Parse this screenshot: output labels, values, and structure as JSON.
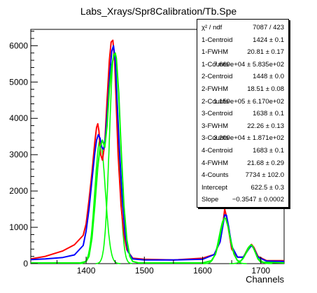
{
  "title": "Labs_Xrays/Spr8Calibration/Tb.Spe",
  "chart_data": {
    "type": "line",
    "title": "Labs_Xrays/Spr8Calibration/Tb.Spe",
    "xlabel": "Channels",
    "ylabel": "",
    "xlim": [
      1305,
      1740
    ],
    "ylim": [
      0,
      6450
    ],
    "x_ticks": [
      1400,
      1500,
      1600,
      1700
    ],
    "y_ticks": [
      0,
      1000,
      2000,
      3000,
      4000,
      5000,
      6000
    ],
    "grid": false,
    "series": [
      {
        "color": "#ff0000",
        "x": [
          1305,
          1330,
          1360,
          1380,
          1395,
          1400,
          1405,
          1410,
          1415,
          1418,
          1420,
          1422,
          1425,
          1428,
          1432,
          1436,
          1440,
          1443,
          1446,
          1449,
          1452,
          1455,
          1460,
          1465,
          1470,
          1480,
          1500,
          1550,
          1600,
          1620,
          1630,
          1635,
          1638,
          1641,
          1645,
          1650,
          1660,
          1670,
          1680,
          1684,
          1688,
          1695,
          1710,
          1740
        ],
        "y": [
          130,
          200,
          350,
          520,
          780,
          1100,
          1750,
          2500,
          3350,
          3750,
          3850,
          3650,
          3000,
          2850,
          3300,
          4500,
          5600,
          6100,
          6150,
          5600,
          4300,
          3000,
          1600,
          800,
          380,
          150,
          120,
          100,
          150,
          250,
          600,
          1100,
          1500,
          1300,
          900,
          400,
          180,
          180,
          450,
          530,
          450,
          200,
          80,
          80
        ]
      },
      {
        "color": "#0000ff",
        "x": [
          1305,
          1330,
          1360,
          1380,
          1395,
          1400,
          1405,
          1410,
          1415,
          1418,
          1421,
          1424,
          1427,
          1430,
          1433,
          1437,
          1441,
          1444,
          1447,
          1450,
          1453,
          1457,
          1462,
          1467,
          1472,
          1480,
          1500,
          1550,
          1600,
          1620,
          1630,
          1635,
          1638,
          1641,
          1645,
          1650,
          1660,
          1670,
          1680,
          1684,
          1688,
          1695,
          1710,
          1740
        ],
        "y": [
          110,
          130,
          170,
          240,
          500,
          900,
          1500,
          2300,
          3050,
          3400,
          3550,
          3450,
          3200,
          3150,
          3450,
          4300,
          5300,
          5850,
          6000,
          5600,
          4500,
          3200,
          1800,
          800,
          330,
          130,
          100,
          100,
          120,
          250,
          600,
          1050,
          1340,
          1330,
          1000,
          480,
          180,
          180,
          420,
          500,
          420,
          180,
          70,
          60
        ]
      },
      {
        "color": "#00ff00",
        "x": [
          1305,
          1390,
          1400,
          1405,
          1410,
          1415,
          1420,
          1424,
          1428,
          1432,
          1436,
          1440,
          1444,
          1448,
          1450,
          1452,
          1456,
          1460,
          1465,
          1470,
          1475,
          1480,
          1490,
          1600,
          1615,
          1622,
          1628,
          1632,
          1636,
          1638,
          1640,
          1644,
          1648,
          1654,
          1660,
          1665,
          1670,
          1675,
          1680,
          1683,
          1686,
          1690,
          1695,
          1700,
          1740
        ],
        "y": [
          20,
          20,
          60,
          200,
          700,
          1600,
          2650,
          3200,
          3400,
          3200,
          3800,
          4800,
          5450,
          5750,
          5800,
          5650,
          4700,
          3200,
          1600,
          650,
          200,
          60,
          20,
          20,
          80,
          250,
          600,
          950,
          1210,
          1260,
          1230,
          1000,
          650,
          260,
          80,
          60,
          150,
          300,
          450,
          520,
          480,
          330,
          130,
          40,
          20
        ]
      }
    ],
    "components": [
      {
        "color": "#00ff00",
        "mu": 1424,
        "fwhm": 20.81,
        "amp": 3400
      },
      {
        "color": "#00ff00",
        "mu": 1448,
        "fwhm": 18.51,
        "amp": 5800
      },
      {
        "color": "#00ff00",
        "mu": 1638,
        "fwhm": 22.26,
        "amp": 1250
      },
      {
        "color": "#00ff00",
        "mu": 1683,
        "fwhm": 21.68,
        "amp": 500
      }
    ]
  },
  "stats": [
    {
      "name": "χ² / ndf",
      "value": "7087 / 423"
    },
    {
      "name": "1-Centroid",
      "value": "1424 ± 0.1"
    },
    {
      "name": "1-FWHM",
      "value": "20.81 ± 0.17"
    },
    {
      "name": "1-Counts",
      "value": "7.669e+04 ± 5.835e+02"
    },
    {
      "name": "2-Centroid",
      "value": "1448 ± 0.0"
    },
    {
      "name": "2-FWHM",
      "value": "18.51 ± 0.08"
    },
    {
      "name": "2-Counts",
      "value": "1.159e+05 ± 6.170e+02"
    },
    {
      "name": "3-Centroid",
      "value": "1638 ± 0.1"
    },
    {
      "name": "3-FWHM",
      "value": "22.26 ± 0.13"
    },
    {
      "name": "3-Counts",
      "value": "3.209e+04 ± 1.871e+02"
    },
    {
      "name": "4-Centroid",
      "value": "1683 ± 0.1"
    },
    {
      "name": "4-FWHM",
      "value": "21.68 ± 0.29"
    },
    {
      "name": "4-Counts",
      "value": "7734 ± 102.0"
    },
    {
      "name": "Intercept",
      "value": "622.5 ± 0.3"
    },
    {
      "name": "Slope",
      "value": "−0.3547 ± 0.0002"
    }
  ]
}
